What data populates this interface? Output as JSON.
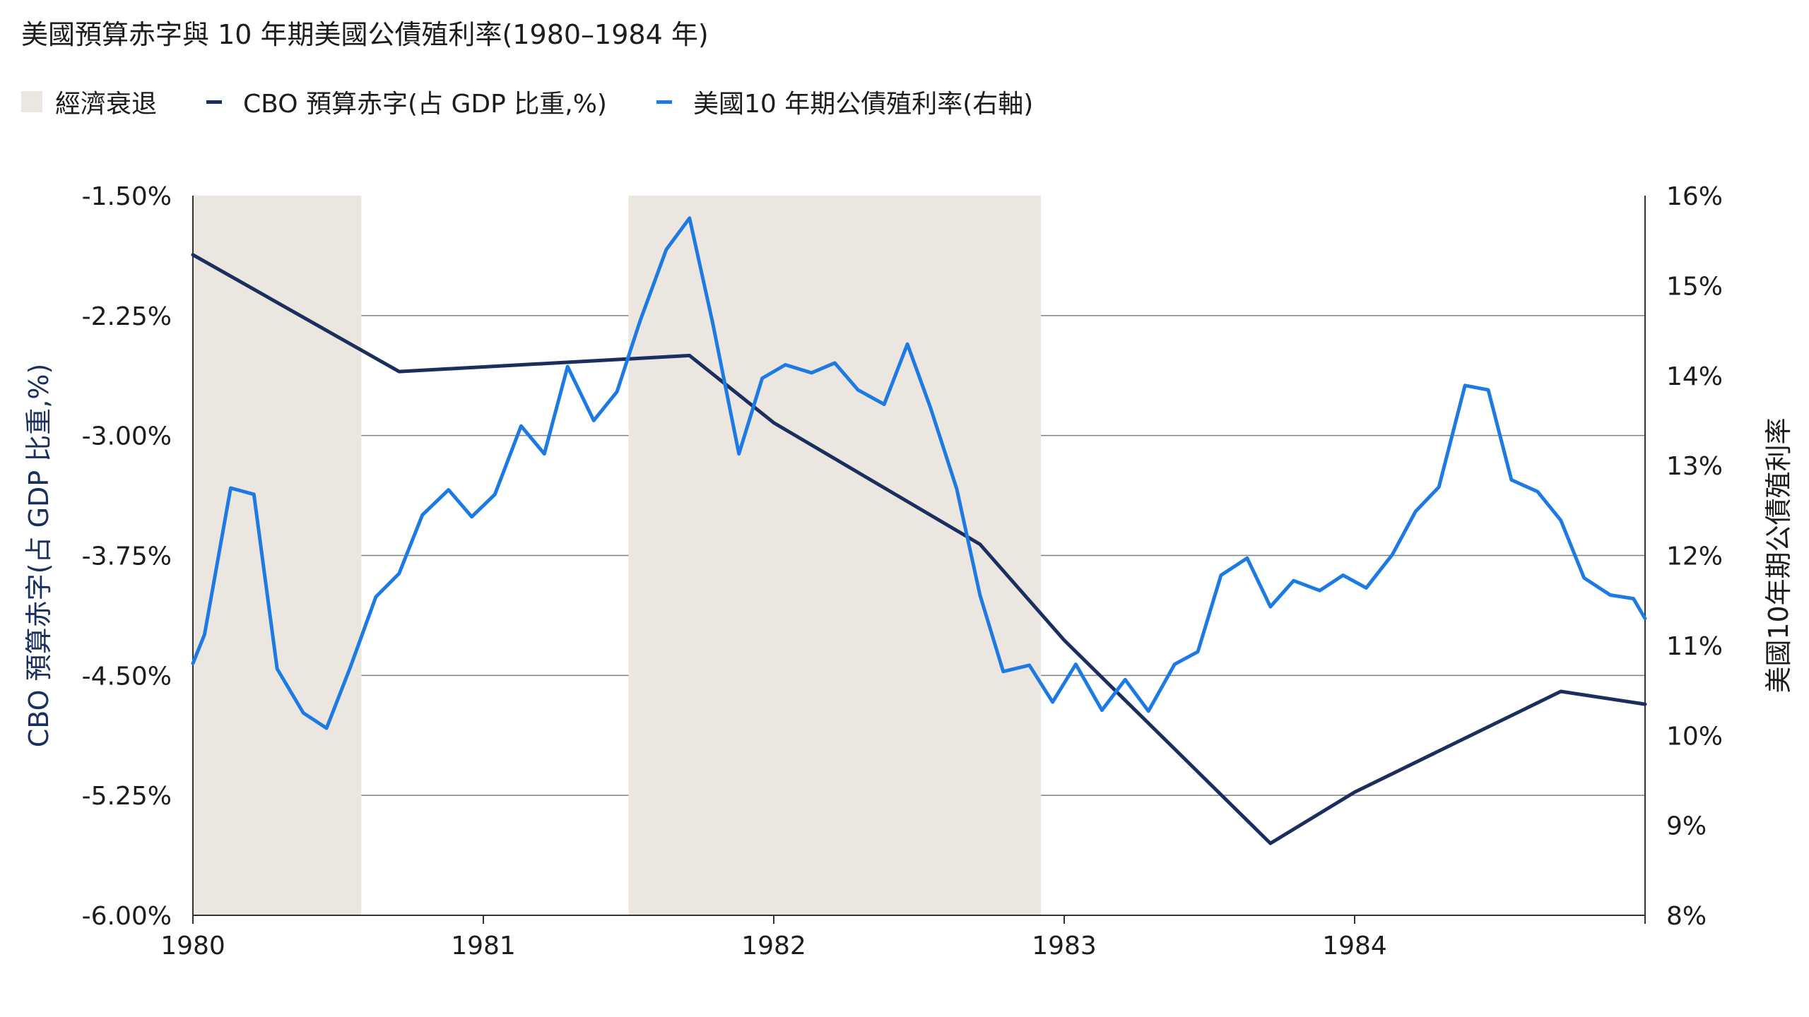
{
  "title": "美國預算赤字與 10 年期美國公債殖利率(1980–1984 年)",
  "legend": {
    "recession": "經濟衰退",
    "deficit": "CBO 預算赤字(占 GDP 比重,%)",
    "yield": "美國10 年期公債殖利率(右軸)"
  },
  "colors": {
    "recession": "#ebe6e0",
    "deficit": "#1b2f5e",
    "yield": "#1e7ae3",
    "grid": "#7f7f7f",
    "axis": "#333333"
  },
  "chart_data": {
    "type": "line",
    "title": "美國預算赤字與 10 年期美國公債殖利率(1980–1984 年)",
    "xlabel": "",
    "ylabel_left": "CBO 預算赤字(占 GDP 比重,%)",
    "ylabel_right": "美國10年期公債殖利率",
    "x_range": [
      1980.0,
      1985.0
    ],
    "x_ticks": [
      1980,
      1981,
      1982,
      1983,
      1984
    ],
    "x_tick_labels": [
      "1980",
      "1981",
      "1982",
      "1983",
      "1984"
    ],
    "y_left_range": [
      -6.0,
      -1.5
    ],
    "y_left_ticks": [
      -1.5,
      -2.25,
      -3.0,
      -3.75,
      -4.5,
      -5.25,
      -6.0
    ],
    "y_left_tick_labels": [
      "-1.50%",
      "-2.25%",
      "-3.00%",
      "-3.75%",
      "-4.50%",
      "-5.25%",
      "-6.00%"
    ],
    "y_right_range": [
      8,
      16
    ],
    "y_right_ticks": [
      16,
      15,
      14,
      13,
      12,
      11,
      10,
      9,
      8
    ],
    "y_right_tick_labels": [
      "16%",
      "15%",
      "14%",
      "13%",
      "12%",
      "11%",
      "10%",
      "9%",
      "8%"
    ],
    "grid": "horizontal",
    "recessions": [
      [
        1980.0,
        1980.58
      ],
      [
        1981.5,
        1982.92
      ]
    ],
    "series": [
      {
        "name": "CBO 預算赤字(占 GDP 比重,%)",
        "axis": "left",
        "x": [
          1980.0,
          1980.71,
          1981.71,
          1982.0,
          1982.71,
          1983.0,
          1983.71,
          1984.0,
          1984.71,
          1985.0
        ],
        "y": [
          -1.87,
          -2.6,
          -2.5,
          -2.92,
          -3.68,
          -4.28,
          -5.55,
          -5.23,
          -4.6,
          -4.68
        ]
      },
      {
        "name": "美國10 年期公債殖利率(右軸)",
        "axis": "right",
        "x": [
          1980.0,
          1980.04,
          1980.13,
          1980.21,
          1980.29,
          1980.38,
          1980.46,
          1980.54,
          1980.63,
          1980.71,
          1980.79,
          1980.88,
          1980.96,
          1981.04,
          1981.13,
          1981.21,
          1981.29,
          1981.38,
          1981.46,
          1981.54,
          1981.63,
          1981.71,
          1981.79,
          1981.88,
          1981.96,
          1982.04,
          1982.13,
          1982.21,
          1982.29,
          1982.38,
          1982.46,
          1982.54,
          1982.63,
          1982.71,
          1982.79,
          1982.88,
          1982.96,
          1983.04,
          1983.13,
          1983.21,
          1983.29,
          1983.38,
          1983.46,
          1983.54,
          1983.63,
          1983.71,
          1983.79,
          1983.88,
          1983.96,
          1984.04,
          1984.13,
          1984.21,
          1984.29,
          1984.38,
          1984.46,
          1984.54,
          1984.63,
          1984.71,
          1984.79,
          1984.88,
          1984.96,
          1985.0
        ],
        "y": [
          10.8,
          11.12,
          12.75,
          12.68,
          10.74,
          10.25,
          10.08,
          10.74,
          11.54,
          11.8,
          12.45,
          12.73,
          12.43,
          12.68,
          13.44,
          13.13,
          14.1,
          13.5,
          13.82,
          14.61,
          15.4,
          15.75,
          14.58,
          13.13,
          13.97,
          14.12,
          14.03,
          14.14,
          13.84,
          13.68,
          14.35,
          13.64,
          12.74,
          11.56,
          10.71,
          10.78,
          10.37,
          10.79,
          10.28,
          10.62,
          10.27,
          10.79,
          10.93,
          11.78,
          11.97,
          11.43,
          11.72,
          11.61,
          11.78,
          11.64,
          12.01,
          12.49,
          12.76,
          13.89,
          13.84,
          12.84,
          12.71,
          12.39,
          11.75,
          11.56,
          11.52,
          11.3
        ]
      }
    ]
  }
}
